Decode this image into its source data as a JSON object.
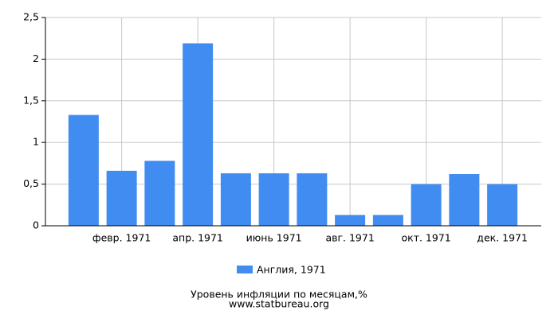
{
  "chart_data": {
    "type": "bar",
    "title": "Уровень инфляции по месяцам,%",
    "subtitle": "www.statbureau.org",
    "categories": [
      null,
      "февр. 1971",
      null,
      "апр. 1971",
      null,
      "июнь 1971",
      null,
      "авг. 1971",
      null,
      "окт. 1971",
      null,
      "дек. 1971"
    ],
    "series": [
      {
        "name": "Англия, 1971",
        "color": "#418cf0",
        "values": [
          1.33,
          0.66,
          0.78,
          2.19,
          0.63,
          0.63,
          0.63,
          0.13,
          0.13,
          0.5,
          0.62,
          0.5
        ]
      }
    ],
    "ylim": [
      0,
      2.5
    ],
    "yticks": [
      0,
      {
        "value": 0.5,
        "label": "0,5"
      },
      1,
      {
        "value": 1.5,
        "label": "1,5"
      },
      2,
      {
        "value": 2.5,
        "label": "2,5"
      }
    ],
    "grid": true
  }
}
